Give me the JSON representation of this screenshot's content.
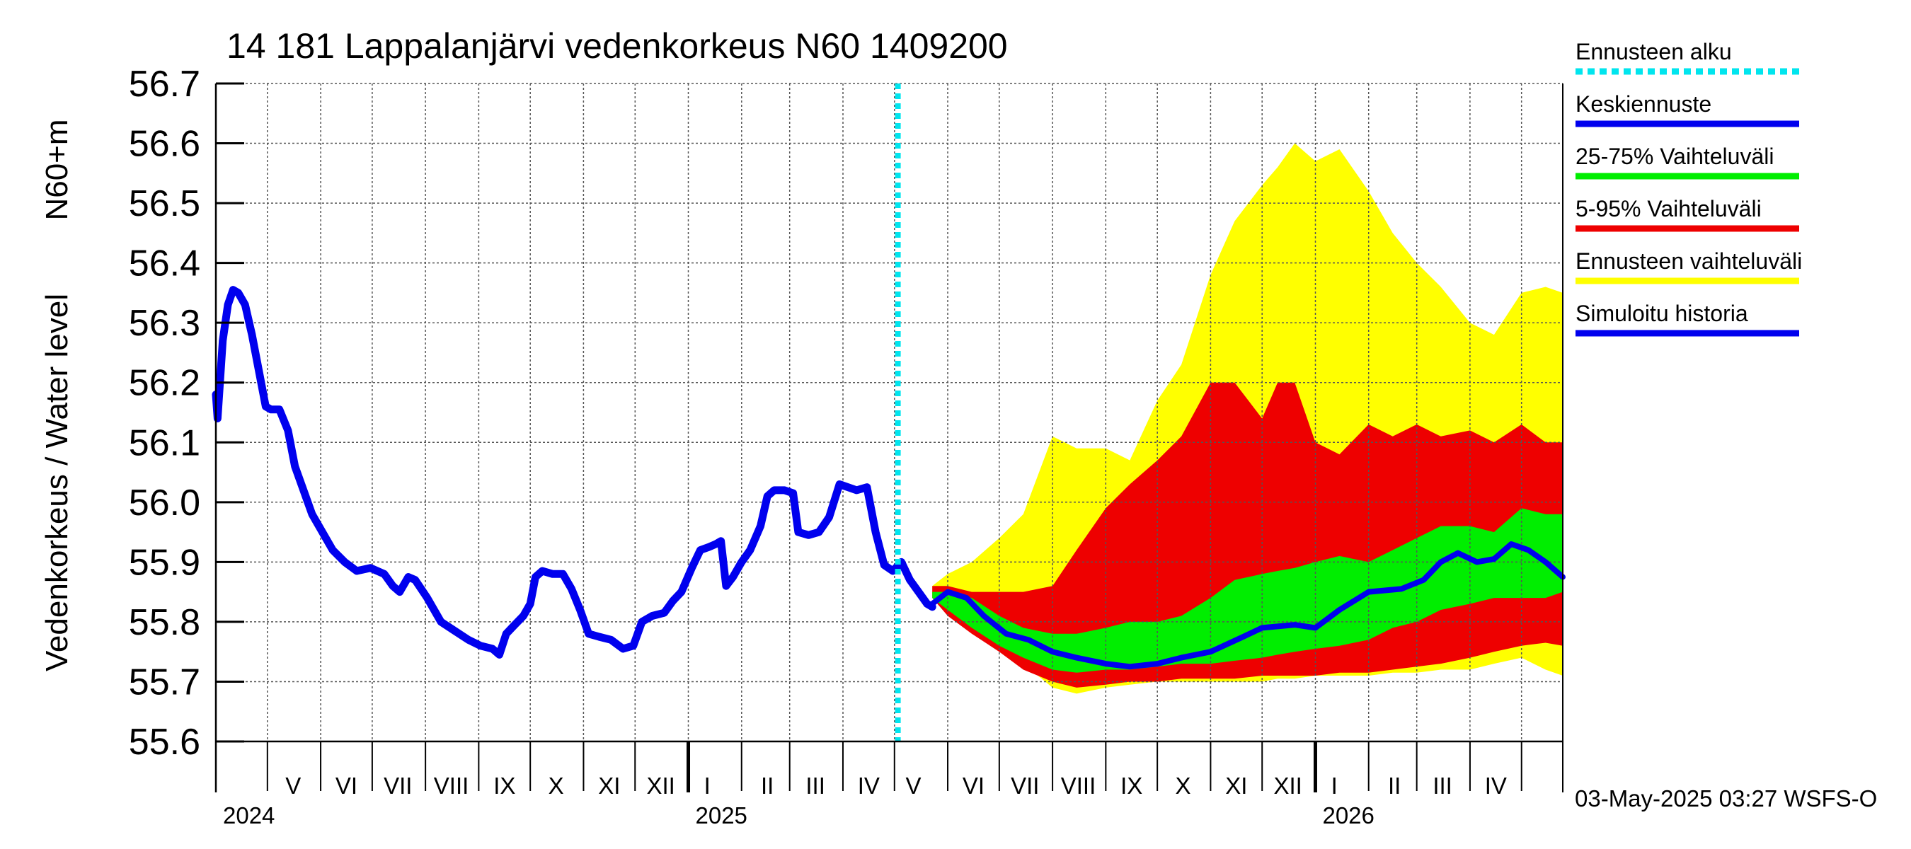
{
  "chart_data": {
    "type": "area",
    "title": "14 181 Lappalanjärvi vedenkorkeus N60 1409200",
    "ylabel_left": "Vedenkorkeus / Water level",
    "ylabel_right": "N60+m",
    "footer": "03-May-2025 03:27 WSFS-O",
    "ylim": [
      55.6,
      56.7
    ],
    "yticks": [
      55.6,
      55.7,
      55.8,
      55.9,
      56.0,
      56.1,
      56.2,
      56.3,
      56.4,
      56.5,
      56.6,
      56.7
    ],
    "ytick_labels": [
      "55.6",
      "55.7",
      "55.8",
      "55.9",
      "56.0",
      "56.1",
      "56.2",
      "56.3",
      "56.4",
      "56.5",
      "56.6",
      "56.7"
    ],
    "xlim": [
      "2024-04-01",
      "2026-05-25"
    ],
    "month_ticks": [
      "2024-04-01",
      "2024-05-01",
      "2024-06-01",
      "2024-07-01",
      "2024-08-01",
      "2024-09-01",
      "2024-10-01",
      "2024-11-01",
      "2024-12-01",
      "2025-01-01",
      "2025-02-01",
      "2025-03-01",
      "2025-04-01",
      "2025-05-01",
      "2025-06-01",
      "2025-07-01",
      "2025-08-01",
      "2025-09-01",
      "2025-10-01",
      "2025-11-01",
      "2025-12-01",
      "2026-01-01",
      "2026-02-01",
      "2026-03-01",
      "2026-04-01",
      "2026-05-01"
    ],
    "month_labels": [
      {
        "date": "2024-05-16",
        "text": "V"
      },
      {
        "date": "2024-06-16",
        "text": "VI"
      },
      {
        "date": "2024-07-16",
        "text": "VII"
      },
      {
        "date": "2024-08-16",
        "text": "VIII"
      },
      {
        "date": "2024-09-16",
        "text": "IX"
      },
      {
        "date": "2024-10-16",
        "text": "X"
      },
      {
        "date": "2024-11-16",
        "text": "XI"
      },
      {
        "date": "2024-12-16",
        "text": "XII"
      },
      {
        "date": "2025-01-12",
        "text": "I"
      },
      {
        "date": "2025-02-16",
        "text": "II"
      },
      {
        "date": "2025-03-16",
        "text": "III"
      },
      {
        "date": "2025-04-16",
        "text": "IV"
      },
      {
        "date": "2025-05-12",
        "text": "V"
      },
      {
        "date": "2025-06-16",
        "text": "VI"
      },
      {
        "date": "2025-07-16",
        "text": "VII"
      },
      {
        "date": "2025-08-16",
        "text": "VIII"
      },
      {
        "date": "2025-09-16",
        "text": "IX"
      },
      {
        "date": "2025-10-16",
        "text": "X"
      },
      {
        "date": "2025-11-16",
        "text": "XI"
      },
      {
        "date": "2025-12-16",
        "text": "XII"
      },
      {
        "date": "2026-01-12",
        "text": "I"
      },
      {
        "date": "2026-02-16",
        "text": "II"
      },
      {
        "date": "2026-03-16",
        "text": "III"
      },
      {
        "date": "2026-04-16",
        "text": "IV"
      }
    ],
    "year_ticks": [
      "2025-01-01",
      "2026-01-01"
    ],
    "year_labels": [
      {
        "date": "2024-04-01",
        "text": "2024"
      },
      {
        "date": "2025-01-01",
        "text": "2025"
      },
      {
        "date": "2026-01-01",
        "text": "2026"
      }
    ],
    "forecast_start": "2025-05-03",
    "colors": {
      "forecast_start": "#00e5ee",
      "mean": "#0000ee",
      "band_25_75": "#00ee00",
      "band_5_95": "#ee0000",
      "band_range": "#ffff00",
      "history": "#0000ee",
      "grid": "#555555"
    },
    "legend": [
      {
        "label": "Ennusteen alku",
        "color": "#00e5ee",
        "style": "dotted"
      },
      {
        "label": "Keskiennuste",
        "color": "#0000ee",
        "style": "solid"
      },
      {
        "label": "25-75% Vaihteluväli",
        "color": "#00ee00",
        "style": "solid"
      },
      {
        "label": "5-95% Vaihteluväli",
        "color": "#ee0000",
        "style": "solid"
      },
      {
        "label": "Ennusteen vaihteluväli",
        "color": "#ffff00",
        "style": "solid"
      },
      {
        "label": "Simuloitu historia",
        "color": "#0000ee",
        "style": "solid"
      }
    ],
    "series": [
      {
        "name": "Simuloitu historia",
        "points": [
          [
            "2024-04-01",
            56.18
          ],
          [
            "2024-04-02",
            56.14
          ],
          [
            "2024-04-05",
            56.27
          ],
          [
            "2024-04-08",
            56.33
          ],
          [
            "2024-04-11",
            56.355
          ],
          [
            "2024-04-14",
            56.35
          ],
          [
            "2024-04-18",
            56.33
          ],
          [
            "2024-04-22",
            56.28
          ],
          [
            "2024-04-26",
            56.22
          ],
          [
            "2024-04-30",
            56.16
          ],
          [
            "2024-05-03",
            56.155
          ],
          [
            "2024-05-08",
            56.155
          ],
          [
            "2024-05-13",
            56.12
          ],
          [
            "2024-05-17",
            56.06
          ],
          [
            "2024-05-22",
            56.02
          ],
          [
            "2024-05-27",
            55.98
          ],
          [
            "2024-06-02",
            55.95
          ],
          [
            "2024-06-08",
            55.92
          ],
          [
            "2024-06-15",
            55.9
          ],
          [
            "2024-06-22",
            55.885
          ],
          [
            "2024-06-30",
            55.89
          ],
          [
            "2024-07-08",
            55.88
          ],
          [
            "2024-07-13",
            55.86
          ],
          [
            "2024-07-17",
            55.85
          ],
          [
            "2024-07-22",
            55.875
          ],
          [
            "2024-07-26",
            55.87
          ],
          [
            "2024-08-02",
            55.84
          ],
          [
            "2024-08-10",
            55.8
          ],
          [
            "2024-08-18",
            55.785
          ],
          [
            "2024-08-26",
            55.77
          ],
          [
            "2024-09-02",
            55.76
          ],
          [
            "2024-09-09",
            55.755
          ],
          [
            "2024-09-13",
            55.745
          ],
          [
            "2024-09-17",
            55.78
          ],
          [
            "2024-09-22",
            55.795
          ],
          [
            "2024-09-27",
            55.81
          ],
          [
            "2024-10-01",
            55.83
          ],
          [
            "2024-10-04",
            55.875
          ],
          [
            "2024-10-08",
            55.885
          ],
          [
            "2024-10-14",
            55.88
          ],
          [
            "2024-10-20",
            55.88
          ],
          [
            "2024-10-25",
            55.855
          ],
          [
            "2024-10-30",
            55.82
          ],
          [
            "2024-11-04",
            55.78
          ],
          [
            "2024-11-10",
            55.775
          ],
          [
            "2024-11-17",
            55.77
          ],
          [
            "2024-11-24",
            55.755
          ],
          [
            "2024-11-30",
            55.76
          ],
          [
            "2024-12-05",
            55.8
          ],
          [
            "2024-12-11",
            55.81
          ],
          [
            "2024-12-18",
            55.815
          ],
          [
            "2024-12-23",
            55.835
          ],
          [
            "2024-12-28",
            55.85
          ],
          [
            "2025-01-03",
            55.89
          ],
          [
            "2025-01-08",
            55.92
          ],
          [
            "2025-01-13",
            55.925
          ],
          [
            "2025-01-17",
            55.93
          ],
          [
            "2025-01-20",
            55.935
          ],
          [
            "2025-01-23",
            55.86
          ],
          [
            "2025-01-27",
            55.875
          ],
          [
            "2025-02-01",
            55.9
          ],
          [
            "2025-02-06",
            55.92
          ],
          [
            "2025-02-12",
            55.96
          ],
          [
            "2025-02-16",
            56.01
          ],
          [
            "2025-02-20",
            56.02
          ],
          [
            "2025-02-26",
            56.02
          ],
          [
            "2025-03-03",
            56.015
          ],
          [
            "2025-03-06",
            55.95
          ],
          [
            "2025-03-12",
            55.945
          ],
          [
            "2025-03-18",
            55.95
          ],
          [
            "2025-03-24",
            55.975
          ],
          [
            "2025-03-30",
            56.03
          ],
          [
            "2025-04-04",
            56.025
          ],
          [
            "2025-04-09",
            56.02
          ],
          [
            "2025-04-15",
            56.025
          ],
          [
            "2025-04-20",
            55.95
          ],
          [
            "2025-04-25",
            55.895
          ],
          [
            "2025-04-30",
            55.885
          ],
          [
            "2025-05-05",
            55.9
          ],
          [
            "2025-05-10",
            55.87
          ],
          [
            "2025-05-15",
            55.85
          ],
          [
            "2025-05-20",
            55.83
          ],
          [
            "2025-05-23",
            55.825
          ]
        ]
      },
      {
        "name": "Keskiennuste",
        "points": [
          [
            "2025-05-23",
            55.83
          ],
          [
            "2025-06-01",
            55.85
          ],
          [
            "2025-06-12",
            55.84
          ],
          [
            "2025-06-22",
            55.81
          ],
          [
            "2025-07-05",
            55.78
          ],
          [
            "2025-07-18",
            55.77
          ],
          [
            "2025-08-01",
            55.75
          ],
          [
            "2025-08-15",
            55.74
          ],
          [
            "2025-09-01",
            55.73
          ],
          [
            "2025-09-15",
            55.725
          ],
          [
            "2025-10-01",
            55.73
          ],
          [
            "2025-10-15",
            55.74
          ],
          [
            "2025-11-01",
            55.75
          ],
          [
            "2025-11-20",
            55.775
          ],
          [
            "2025-12-01",
            55.79
          ],
          [
            "2025-12-20",
            55.795
          ],
          [
            "2026-01-01",
            55.79
          ],
          [
            "2026-01-15",
            55.82
          ],
          [
            "2026-02-01",
            55.85
          ],
          [
            "2026-02-20",
            55.855
          ],
          [
            "2026-03-05",
            55.87
          ],
          [
            "2026-03-15",
            55.9
          ],
          [
            "2026-03-25",
            55.915
          ],
          [
            "2026-04-05",
            55.9
          ],
          [
            "2026-04-15",
            55.905
          ],
          [
            "2026-04-25",
            55.93
          ],
          [
            "2026-05-05",
            55.92
          ],
          [
            "2026-05-15",
            55.9
          ],
          [
            "2026-05-25",
            55.875
          ]
        ]
      }
    ],
    "bands": [
      {
        "name": "Ennusteen vaihteluväli",
        "x": [
          "2025-05-23",
          "2025-06-01",
          "2025-06-15",
          "2025-07-01",
          "2025-07-15",
          "2025-08-01",
          "2025-08-15",
          "2025-09-01",
          "2025-09-15",
          "2025-10-01",
          "2025-10-15",
          "2025-11-01",
          "2025-11-15",
          "2025-12-01",
          "2025-12-10",
          "2025-12-20",
          "2026-01-01",
          "2026-01-15",
          "2026-02-01",
          "2026-02-15",
          "2026-03-01",
          "2026-03-15",
          "2026-04-01",
          "2026-04-15",
          "2026-05-01",
          "2026-05-15",
          "2026-05-25"
        ],
        "upper": [
          55.86,
          55.88,
          55.9,
          55.94,
          55.98,
          56.11,
          56.09,
          56.09,
          56.07,
          56.17,
          56.23,
          56.38,
          56.47,
          56.53,
          56.56,
          56.6,
          56.57,
          56.59,
          56.52,
          56.45,
          56.4,
          56.36,
          56.3,
          56.28,
          56.35,
          56.36,
          56.35
        ],
        "lower": [
          55.84,
          55.82,
          55.78,
          55.76,
          55.73,
          55.69,
          55.68,
          55.69,
          55.695,
          55.7,
          55.7,
          55.7,
          55.7,
          55.7,
          55.705,
          55.705,
          55.71,
          55.71,
          55.71,
          55.715,
          55.715,
          55.72,
          55.72,
          55.73,
          55.74,
          55.72,
          55.71
        ]
      },
      {
        "name": "5-95% Vaihteluväli",
        "x": [
          "2025-05-23",
          "2025-06-01",
          "2025-06-15",
          "2025-07-01",
          "2025-07-15",
          "2025-08-01",
          "2025-08-15",
          "2025-09-01",
          "2025-09-15",
          "2025-10-01",
          "2025-10-15",
          "2025-11-01",
          "2025-11-15",
          "2025-12-01",
          "2025-12-10",
          "2025-12-20",
          "2026-01-01",
          "2026-01-15",
          "2026-02-01",
          "2026-02-15",
          "2026-03-01",
          "2026-03-15",
          "2026-04-01",
          "2026-04-15",
          "2026-05-01",
          "2026-05-15",
          "2026-05-25"
        ],
        "upper": [
          55.86,
          55.86,
          55.85,
          55.85,
          55.85,
          55.86,
          55.92,
          55.99,
          56.03,
          56.07,
          56.11,
          56.2,
          56.2,
          56.14,
          56.2,
          56.2,
          56.1,
          56.08,
          56.13,
          56.11,
          56.13,
          56.11,
          56.12,
          56.1,
          56.13,
          56.1,
          56.1
        ],
        "lower": [
          55.84,
          55.81,
          55.78,
          55.75,
          55.72,
          55.7,
          55.69,
          55.695,
          55.7,
          55.7,
          55.705,
          55.705,
          55.705,
          55.71,
          55.71,
          55.71,
          55.71,
          55.715,
          55.715,
          55.72,
          55.725,
          55.73,
          55.74,
          55.75,
          55.76,
          55.765,
          55.76
        ]
      },
      {
        "name": "25-75% Vaihteluväli",
        "x": [
          "2025-05-23",
          "2025-06-01",
          "2025-06-15",
          "2025-07-01",
          "2025-07-15",
          "2025-08-01",
          "2025-08-15",
          "2025-09-01",
          "2025-09-15",
          "2025-10-01",
          "2025-10-15",
          "2025-11-01",
          "2025-11-15",
          "2025-12-01",
          "2025-12-10",
          "2025-12-20",
          "2026-01-01",
          "2026-01-15",
          "2026-02-01",
          "2026-02-15",
          "2026-03-01",
          "2026-03-15",
          "2026-04-01",
          "2026-04-15",
          "2026-05-01",
          "2026-05-15",
          "2026-05-25"
        ],
        "upper": [
          55.85,
          55.85,
          55.84,
          55.81,
          55.79,
          55.78,
          55.78,
          55.79,
          55.8,
          55.8,
          55.81,
          55.84,
          55.87,
          55.88,
          55.885,
          55.89,
          55.9,
          55.91,
          55.9,
          55.92,
          55.94,
          55.96,
          55.96,
          55.95,
          55.99,
          55.98,
          55.98
        ],
        "lower": [
          55.84,
          55.82,
          55.79,
          55.76,
          55.74,
          55.72,
          55.715,
          55.72,
          55.72,
          55.725,
          55.73,
          55.73,
          55.735,
          55.74,
          55.745,
          55.75,
          55.755,
          55.76,
          55.77,
          55.79,
          55.8,
          55.82,
          55.83,
          55.84,
          55.84,
          55.84,
          55.85
        ]
      }
    ]
  }
}
